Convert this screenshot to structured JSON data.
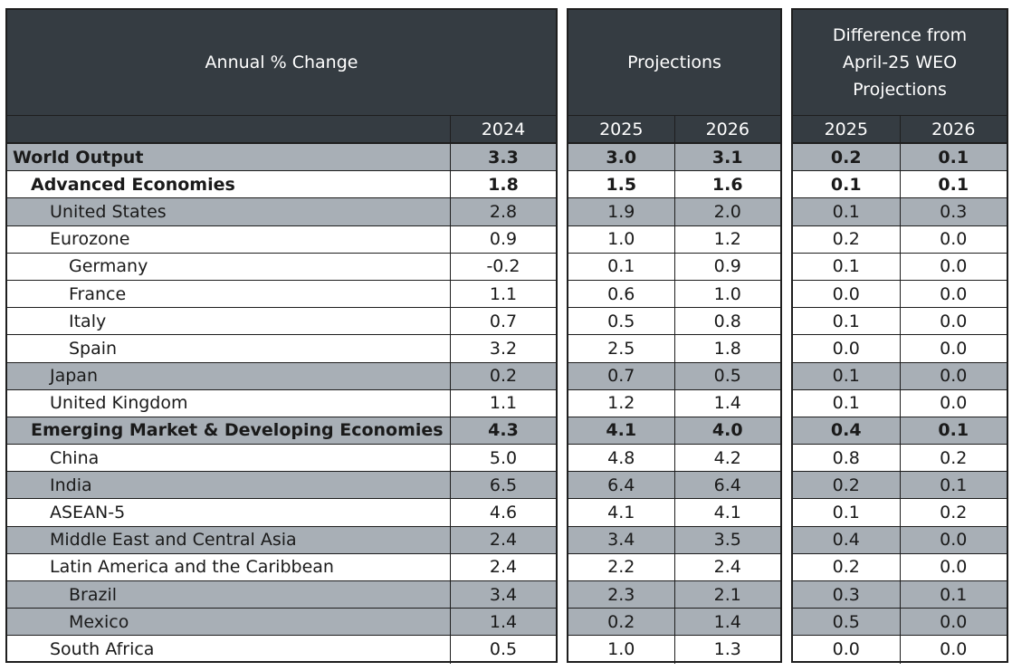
{
  "panels": {
    "annual": {
      "title_lines": [
        "Annual % Change"
      ],
      "years": [
        "2024"
      ]
    },
    "projections": {
      "title_lines": [
        "Projections"
      ],
      "years": [
        "2025",
        "2026"
      ]
    },
    "difference": {
      "title_lines": [
        "Difference from",
        "April-25 WEO",
        "Projections"
      ],
      "years": [
        "2025",
        "2026"
      ]
    }
  },
  "rows": [
    {
      "label": "World Output",
      "indent": 0,
      "shaded": true,
      "bold": true,
      "v2024": "3.3",
      "p2025": "3.0",
      "p2026": "3.1",
      "d2025": "0.2",
      "d2026": "0.1"
    },
    {
      "label": "Advanced Economies",
      "indent": 1,
      "shaded": false,
      "bold": true,
      "v2024": "1.8",
      "p2025": "1.5",
      "p2026": "1.6",
      "d2025": "0.1",
      "d2026": "0.1"
    },
    {
      "label": "United States",
      "indent": 2,
      "shaded": true,
      "bold": false,
      "v2024": "2.8",
      "p2025": "1.9",
      "p2026": "2.0",
      "d2025": "0.1",
      "d2026": "0.3"
    },
    {
      "label": "Eurozone",
      "indent": 2,
      "shaded": false,
      "bold": false,
      "v2024": "0.9",
      "p2025": "1.0",
      "p2026": "1.2",
      "d2025": "0.2",
      "d2026": "0.0"
    },
    {
      "label": "Germany",
      "indent": 3,
      "shaded": false,
      "bold": false,
      "v2024": "-0.2",
      "p2025": "0.1",
      "p2026": "0.9",
      "d2025": "0.1",
      "d2026": "0.0"
    },
    {
      "label": "France",
      "indent": 3,
      "shaded": false,
      "bold": false,
      "v2024": "1.1",
      "p2025": "0.6",
      "p2026": "1.0",
      "d2025": "0.0",
      "d2026": "0.0"
    },
    {
      "label": "Italy",
      "indent": 3,
      "shaded": false,
      "bold": false,
      "v2024": "0.7",
      "p2025": "0.5",
      "p2026": "0.8",
      "d2025": "0.1",
      "d2026": "0.0"
    },
    {
      "label": "Spain",
      "indent": 3,
      "shaded": false,
      "bold": false,
      "v2024": "3.2",
      "p2025": "2.5",
      "p2026": "1.8",
      "d2025": "0.0",
      "d2026": "0.0"
    },
    {
      "label": "Japan",
      "indent": 2,
      "shaded": true,
      "bold": false,
      "v2024": "0.2",
      "p2025": "0.7",
      "p2026": "0.5",
      "d2025": "0.1",
      "d2026": "0.0"
    },
    {
      "label": "United Kingdom",
      "indent": 2,
      "shaded": false,
      "bold": false,
      "v2024": "1.1",
      "p2025": "1.2",
      "p2026": "1.4",
      "d2025": "0.1",
      "d2026": "0.0"
    },
    {
      "label": "Emerging Market & Developing Economies",
      "indent": 1,
      "shaded": true,
      "bold": true,
      "v2024": "4.3",
      "p2025": "4.1",
      "p2026": "4.0",
      "d2025": "0.4",
      "d2026": "0.1"
    },
    {
      "label": "China",
      "indent": 2,
      "shaded": false,
      "bold": false,
      "v2024": "5.0",
      "p2025": "4.8",
      "p2026": "4.2",
      "d2025": "0.8",
      "d2026": "0.2"
    },
    {
      "label": "India",
      "indent": 2,
      "shaded": true,
      "bold": false,
      "v2024": "6.5",
      "p2025": "6.4",
      "p2026": "6.4",
      "d2025": "0.2",
      "d2026": "0.1"
    },
    {
      "label": "ASEAN-5",
      "indent": 2,
      "shaded": false,
      "bold": false,
      "v2024": "4.6",
      "p2025": "4.1",
      "p2026": "4.1",
      "d2025": "0.1",
      "d2026": "0.2"
    },
    {
      "label": "Middle East and Central Asia",
      "indent": 2,
      "shaded": true,
      "bold": false,
      "v2024": "2.4",
      "p2025": "3.4",
      "p2026": "3.5",
      "d2025": "0.4",
      "d2026": "0.0"
    },
    {
      "label": "Latin America and the Caribbean",
      "indent": 2,
      "shaded": false,
      "bold": false,
      "v2024": "2.4",
      "p2025": "2.2",
      "p2026": "2.4",
      "d2025": "0.2",
      "d2026": "0.0"
    },
    {
      "label": "Brazil",
      "indent": 3,
      "shaded": true,
      "bold": false,
      "v2024": "3.4",
      "p2025": "2.3",
      "p2026": "2.1",
      "d2025": "0.3",
      "d2026": "0.1"
    },
    {
      "label": "Mexico",
      "indent": 3,
      "shaded": true,
      "bold": false,
      "v2024": "1.4",
      "p2025": "0.2",
      "p2026": "1.4",
      "d2025": "0.5",
      "d2026": "0.0"
    },
    {
      "label": "South Africa",
      "indent": 2,
      "shaded": false,
      "bold": false,
      "v2024": "0.5",
      "p2025": "1.0",
      "p2026": "1.3",
      "d2025": "0.0",
      "d2026": "0.0"
    }
  ],
  "colors": {
    "header_bg": "#353c42",
    "header_text": "#ffffff",
    "shaded_row": "#a8afb6",
    "border": "#1e1e1e"
  }
}
